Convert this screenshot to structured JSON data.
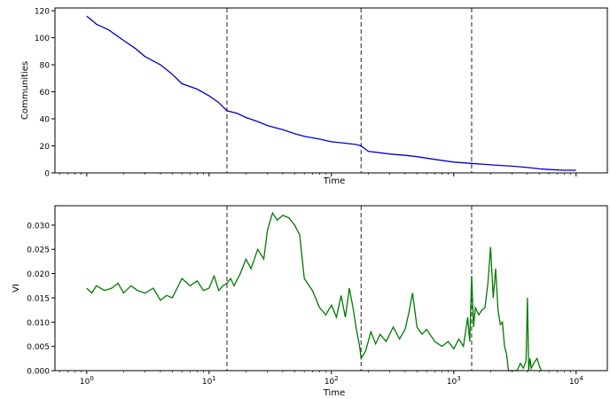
{
  "chart_data": [
    {
      "type": "line",
      "xlabel": "Time",
      "ylabel": "Communities",
      "xscale": "log",
      "xlim": [
        0.55,
        18000
      ],
      "ylim": [
        0,
        122
      ],
      "yticks": [
        0,
        20,
        40,
        60,
        80,
        100,
        120
      ],
      "yticklabels": [
        "0",
        "20",
        "40",
        "60",
        "80",
        "100",
        "120"
      ],
      "show_x_ticklabels": false,
      "grid": false,
      "line_color": "#0000cc",
      "vlines": [
        14,
        175,
        1400
      ],
      "vline_color": "#555555",
      "series": [
        {
          "x": [
            1,
            1.2,
            1.5,
            2,
            2.5,
            3,
            4,
            5,
            6,
            8,
            10,
            12,
            14,
            17,
            20,
            25,
            30,
            40,
            50,
            60,
            80,
            100,
            130,
            160,
            175,
            200,
            300,
            400,
            500,
            700,
            1000,
            1400,
            2000,
            3000,
            4000,
            5000,
            6000,
            8000,
            10000
          ],
          "y": [
            116,
            110,
            106,
            98,
            92,
            86,
            80,
            73,
            66,
            62,
            57,
            52,
            46,
            44,
            41,
            38,
            35,
            32,
            29,
            27,
            25,
            23,
            22,
            21,
            20,
            16,
            14,
            13,
            12,
            10,
            8,
            7,
            6,
            5,
            4,
            3,
            2.5,
            2,
            2
          ]
        }
      ]
    },
    {
      "type": "line",
      "xlabel": "Time",
      "ylabel": "VI",
      "xscale": "log",
      "xlim": [
        0.55,
        18000
      ],
      "ylim": [
        0,
        0.034
      ],
      "xticks": [
        1,
        10,
        100,
        1000,
        10000
      ],
      "xticklabels": [
        {
          "base": "10",
          "exp": "0"
        },
        {
          "base": "10",
          "exp": "1"
        },
        {
          "base": "10",
          "exp": "2"
        },
        {
          "base": "10",
          "exp": "3"
        },
        {
          "base": "10",
          "exp": "4"
        }
      ],
      "yticks": [
        0,
        0.005,
        0.01,
        0.015,
        0.02,
        0.025,
        0.03
      ],
      "yticklabels": [
        "0.000",
        "0.005",
        "0.010",
        "0.015",
        "0.020",
        "0.025",
        "0.030"
      ],
      "grid": false,
      "line_color": "#007a00",
      "vlines": [
        14,
        175,
        1400
      ],
      "vline_color": "#555555",
      "series": [
        {
          "x": [
            1,
            1.1,
            1.2,
            1.4,
            1.6,
            1.8,
            2,
            2.3,
            2.6,
            3,
            3.5,
            4,
            4.5,
            5,
            6,
            7,
            8,
            9,
            10,
            11,
            12,
            13,
            14,
            15,
            16,
            18,
            20,
            22,
            25,
            28,
            30,
            33,
            36,
            40,
            45,
            50,
            55,
            60,
            70,
            80,
            90,
            100,
            110,
            120,
            130,
            140,
            150,
            160,
            170,
            175,
            190,
            210,
            230,
            250,
            280,
            320,
            360,
            400,
            430,
            460,
            500,
            550,
            600,
            700,
            800,
            900,
            1000,
            1100,
            1200,
            1300,
            1350,
            1400,
            1450,
            1500,
            1600,
            1700,
            1800,
            1900,
            2000,
            2100,
            2200,
            2300,
            2400,
            2500,
            2600,
            2700,
            2800,
            3000,
            3300,
            3500,
            3700,
            3900,
            4000,
            4100,
            4200,
            4300,
            4500,
            4800,
            5000,
            5200
          ],
          "y": [
            0.017,
            0.016,
            0.0175,
            0.0165,
            0.017,
            0.018,
            0.016,
            0.0175,
            0.0165,
            0.016,
            0.017,
            0.0145,
            0.0155,
            0.015,
            0.019,
            0.0175,
            0.0185,
            0.0165,
            0.017,
            0.0195,
            0.0165,
            0.0175,
            0.018,
            0.019,
            0.0175,
            0.02,
            0.023,
            0.021,
            0.025,
            0.023,
            0.029,
            0.0325,
            0.031,
            0.032,
            0.0315,
            0.03,
            0.028,
            0.019,
            0.0165,
            0.013,
            0.0115,
            0.0135,
            0.011,
            0.0155,
            0.011,
            0.017,
            0.013,
            0.0085,
            0.005,
            0.0025,
            0.004,
            0.008,
            0.0055,
            0.0075,
            0.006,
            0.009,
            0.0065,
            0.0085,
            0.012,
            0.016,
            0.009,
            0.0075,
            0.0085,
            0.006,
            0.005,
            0.006,
            0.0045,
            0.0065,
            0.005,
            0.011,
            0.006,
            0.0195,
            0.009,
            0.013,
            0.0115,
            0.0125,
            0.013,
            0.018,
            0.0255,
            0.015,
            0.021,
            0.0125,
            0.0095,
            0.01,
            0.005,
            0.0035,
            0.0,
            0.0,
            0.0,
            0.0015,
            0.0005,
            0.002,
            0.015,
            0.0,
            0.0025,
            0.0005,
            0.0015,
            0.0025,
            0.001,
            0.0
          ]
        }
      ]
    }
  ]
}
